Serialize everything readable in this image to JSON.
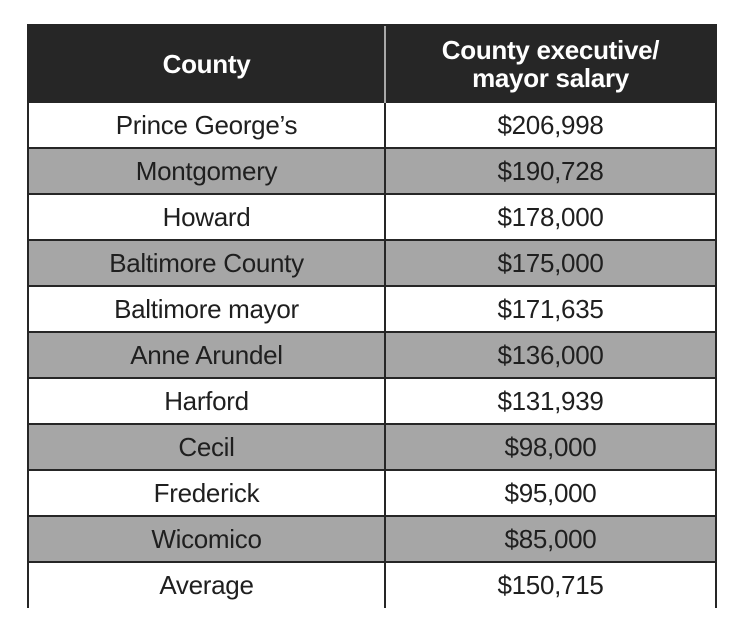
{
  "table": {
    "headers": {
      "county": "County",
      "salary_line1": "County executive/",
      "salary_line2": "mayor salary"
    },
    "rows": [
      {
        "county": "Prince George’s",
        "salary": "$206,998"
      },
      {
        "county": "Montgomery",
        "salary": "$190,728"
      },
      {
        "county": "Howard",
        "salary": "$178,000"
      },
      {
        "county": "Baltimore County",
        "salary": "$175,000"
      },
      {
        "county": "Baltimore mayor",
        "salary": "$171,635"
      },
      {
        "county": "Anne Arundel",
        "salary": "$136,000"
      },
      {
        "county": "Harford",
        "salary": "$131,939"
      },
      {
        "county": "Cecil",
        "salary": "$98,000"
      },
      {
        "county": "Frederick",
        "salary": "$95,000"
      },
      {
        "county": "Wicomico",
        "salary": "$85,000"
      },
      {
        "county": "Average",
        "salary": "$150,715"
      }
    ],
    "colors": {
      "header_bg": "#262626",
      "shaded_row": "#a6a6a6",
      "plain_row": "#ffffff"
    }
  }
}
